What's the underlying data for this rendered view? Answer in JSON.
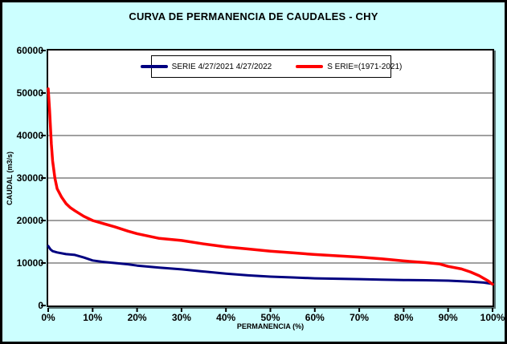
{
  "window": {
    "title": "CURVA DE PERMANENCIA DE CAUDALES - CHY"
  },
  "chart_data": {
    "type": "line",
    "title": "CURVA DE PERMANENCIA DE CAUDALES - CHY",
    "xlabel": "PERMANENCIA (%)",
    "ylabel": "CAUDAL (m3/s)",
    "xlim": [
      0,
      100
    ],
    "ylim": [
      0,
      60000
    ],
    "x_tick_labels": [
      "0%",
      "10%",
      "20%",
      "30%",
      "40%",
      "50%",
      "60%",
      "70%",
      "80%",
      "90%",
      "100%"
    ],
    "x_tick_values": [
      0,
      10,
      20,
      30,
      40,
      50,
      60,
      70,
      80,
      90,
      100
    ],
    "y_tick_labels": [
      "0",
      "10000",
      "20000",
      "30000",
      "40000",
      "50000",
      "60000"
    ],
    "y_tick_values": [
      0,
      10000,
      20000,
      30000,
      40000,
      50000,
      60000
    ],
    "grid": "horizontal",
    "legend_position": "top-center-inside",
    "colors": {
      "background": "#CCFFFF",
      "plot_background": "#FFFFFF",
      "grid": "#808080",
      "axis": "#000000",
      "series_blue": "#000080",
      "series_red": "#FF0000"
    },
    "series": [
      {
        "name": "SERIE 4/27/2021 4/27/2022",
        "color": "#000080",
        "stroke_width": 3,
        "x": [
          0,
          0.5,
          1,
          2,
          4,
          6,
          8,
          10,
          12,
          15,
          18,
          20,
          25,
          30,
          35,
          40,
          45,
          50,
          55,
          60,
          65,
          70,
          75,
          80,
          85,
          90,
          95,
          98,
          100
        ],
        "y": [
          14000,
          13200,
          12800,
          12500,
          12100,
          11900,
          11300,
          10600,
          10300,
          10000,
          9700,
          9400,
          8900,
          8500,
          8000,
          7500,
          7100,
          6800,
          6600,
          6400,
          6300,
          6200,
          6100,
          6000,
          5950,
          5850,
          5600,
          5400,
          5100
        ]
      },
      {
        "name": "S ERIE=(1971-2021)",
        "color": "#FF0000",
        "stroke_width": 3.5,
        "x": [
          0,
          0.3,
          0.7,
          1,
          1.5,
          2,
          3,
          4,
          5,
          6,
          8,
          10,
          12,
          15,
          18,
          20,
          25,
          30,
          35,
          40,
          45,
          50,
          55,
          60,
          65,
          70,
          75,
          80,
          85,
          88,
          90,
          93,
          95,
          97,
          99,
          100
        ],
        "y": [
          51000,
          46000,
          38000,
          34000,
          30000,
          27500,
          25500,
          24000,
          23000,
          22300,
          21000,
          20000,
          19400,
          18500,
          17500,
          16900,
          15800,
          15300,
          14500,
          13800,
          13300,
          12800,
          12400,
          12000,
          11700,
          11400,
          11000,
          10500,
          10100,
          9800,
          9200,
          8600,
          7900,
          7000,
          5800,
          5000
        ]
      }
    ]
  }
}
